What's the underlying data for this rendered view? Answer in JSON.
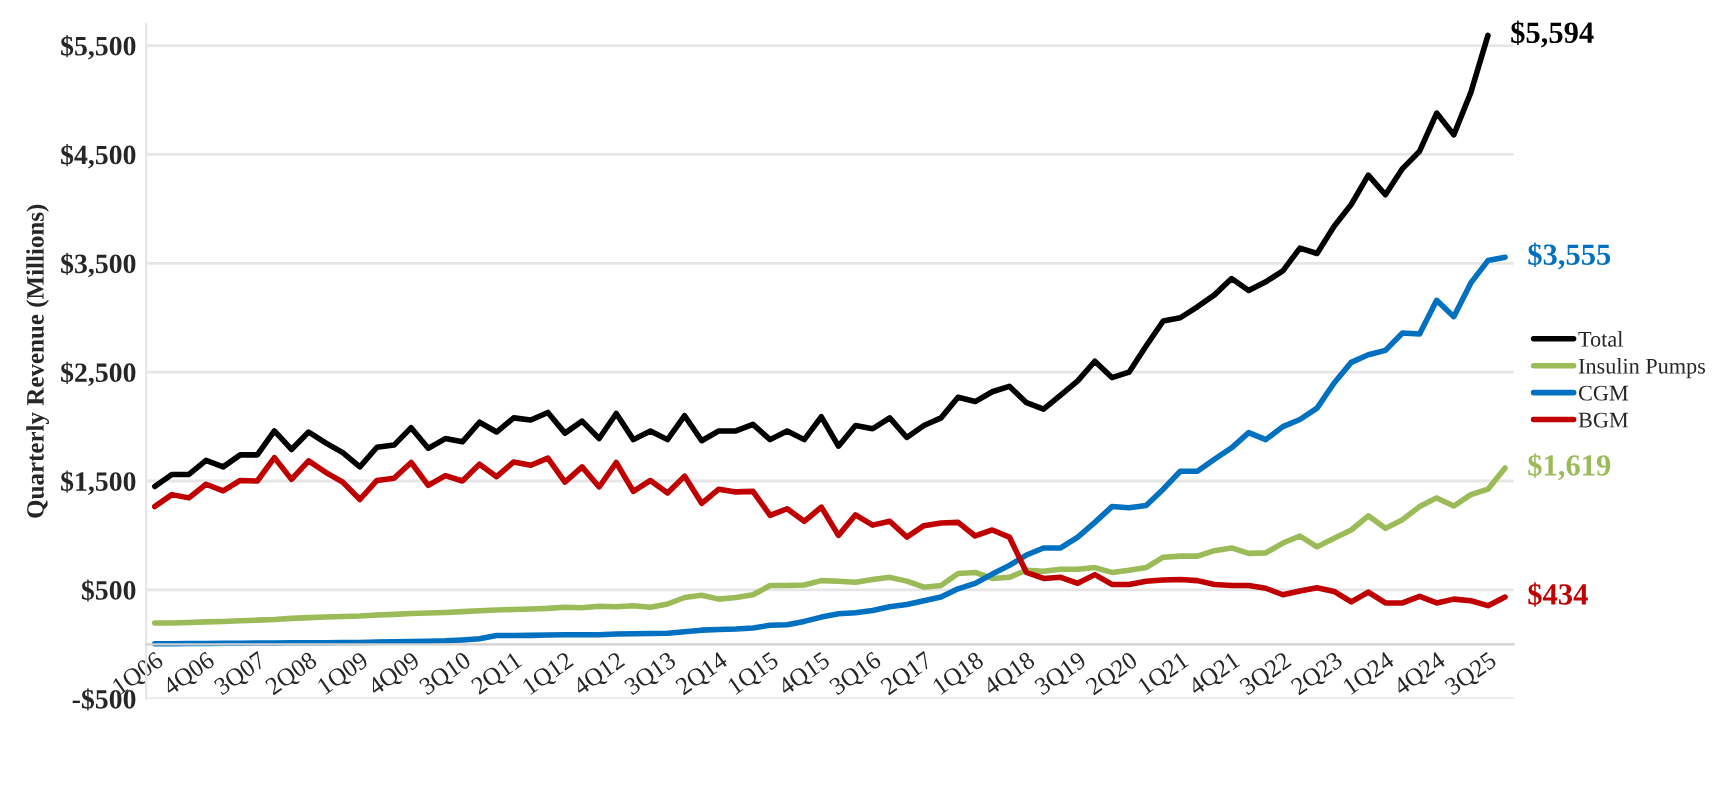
{
  "chart_data": {
    "type": "line",
    "ylabel": "Quarterly Revenue (Millions)",
    "categories": [
      "1Q06",
      null,
      null,
      "4Q06",
      null,
      null,
      "3Q07",
      null,
      null,
      "2Q08",
      null,
      null,
      "1Q09",
      null,
      null,
      "4Q09",
      null,
      null,
      "3Q10",
      null,
      null,
      "2Q11",
      null,
      null,
      "1Q12",
      null,
      null,
      "4Q12",
      null,
      null,
      "3Q13",
      null,
      null,
      "2Q14",
      null,
      null,
      "1Q15",
      null,
      null,
      "4Q15",
      null,
      null,
      "3Q16",
      null,
      null,
      "2Q17",
      null,
      null,
      "1Q18",
      null,
      null,
      "4Q18",
      null,
      null,
      "3Q19",
      null,
      null,
      "2Q20",
      null,
      null,
      "1Q21",
      null,
      null,
      "4Q21",
      null,
      null,
      "3Q22",
      null,
      null,
      "2Q23",
      null,
      null,
      "1Q24",
      null,
      null,
      "4Q24",
      null,
      null,
      "3Q25",
      null
    ],
    "series": [
      {
        "name": "Total",
        "color": "#000000",
        "values": [
          1450,
          1560,
          1560,
          1690,
          1630,
          1740,
          1740,
          1960,
          1790,
          1950,
          1850,
          1760,
          1630,
          1810,
          1830,
          1990,
          1800,
          1890,
          1860,
          2040,
          1950,
          2080,
          2060,
          2130,
          1940,
          2050,
          1890,
          2120,
          1880,
          1960,
          1880,
          2100,
          1870,
          1960,
          1960,
          2020,
          1880,
          1960,
          1880,
          2090,
          1820,
          2010,
          1980,
          2080,
          1900,
          2010,
          2080,
          2270,
          2230,
          2320,
          2370,
          2220,
          2160,
          2290,
          2420,
          2600,
          2450,
          2500,
          2740,
          2970,
          3000,
          3100,
          3210,
          3360,
          3250,
          3330,
          3430,
          3640,
          3590,
          3840,
          4040,
          4310,
          4130,
          4370,
          4530,
          4880,
          4680,
          5070,
          5594,
          null
        ],
        "value_labels": [
          null,
          null,
          null,
          null,
          null,
          null,
          null,
          null,
          null,
          null,
          null,
          null,
          null,
          null,
          null,
          null,
          null,
          null,
          null,
          null,
          null,
          null,
          null,
          null,
          null,
          null,
          null,
          null,
          null,
          null,
          null,
          null,
          null,
          null,
          null,
          null,
          null,
          null,
          null,
          null,
          null,
          null,
          null,
          null,
          null,
          null,
          null,
          null,
          null,
          null,
          null,
          null,
          null,
          null,
          null,
          null,
          null,
          null,
          null,
          null,
          null,
          null,
          null,
          null,
          null,
          null,
          null,
          null,
          null,
          null,
          null,
          null,
          null,
          null,
          null,
          null,
          null,
          null,
          "$5,594",
          null
        ]
      },
      {
        "name": "Insulin Pumps",
        "color": "#9bbb59",
        "values": [
          195,
          195,
          200,
          206,
          210,
          217,
          222,
          227,
          238,
          245,
          250,
          255,
          260,
          270,
          275,
          282,
          287,
          292,
          300,
          308,
          315,
          320,
          325,
          330,
          340,
          335,
          350,
          345,
          355,
          340,
          370,
          430,
          450,
          415,
          430,
          455,
          540,
          540,
          545,
          585,
          580,
          570,
          595,
          615,
          580,
          525,
          540,
          650,
          660,
          605,
          615,
          680,
          670,
          690,
          690,
          705,
          660,
          680,
          705,
          800,
          810,
          810,
          860,
          885,
          835,
          840,
          930,
          995,
          895,
          975,
          1050,
          1180,
          1065,
          1145,
          1265,
          1345,
          1270,
          1375,
          1425,
          1619
        ],
        "value_labels": [
          null,
          null,
          null,
          null,
          null,
          null,
          null,
          null,
          null,
          null,
          null,
          null,
          null,
          null,
          null,
          null,
          null,
          null,
          null,
          null,
          null,
          null,
          null,
          null,
          null,
          null,
          null,
          null,
          null,
          null,
          null,
          null,
          null,
          null,
          null,
          null,
          null,
          null,
          null,
          null,
          null,
          null,
          null,
          null,
          null,
          null,
          null,
          null,
          null,
          null,
          null,
          null,
          null,
          null,
          null,
          null,
          null,
          null,
          null,
          null,
          null,
          null,
          null,
          null,
          null,
          null,
          null,
          null,
          null,
          null,
          null,
          null,
          null,
          null,
          null,
          null,
          null,
          null,
          null,
          "$1,619"
        ]
      },
      {
        "name": "CGM",
        "color": "#0070c0",
        "values": [
          5,
          5,
          8,
          8,
          10,
          10,
          12,
          12,
          14,
          14,
          15,
          16,
          17,
          20,
          22,
          25,
          28,
          32,
          40,
          50,
          80,
          80,
          82,
          85,
          87,
          87,
          88,
          95,
          97,
          100,
          102,
          115,
          130,
          135,
          140,
          150,
          175,
          180,
          210,
          250,
          280,
          290,
          310,
          345,
          365,
          400,
          435,
          510,
          560,
          645,
          725,
          820,
          885,
          885,
          985,
          1120,
          1265,
          1255,
          1275,
          1425,
          1590,
          1590,
          1700,
          1805,
          1945,
          1880,
          2000,
          2065,
          2170,
          2400,
          2590,
          2660,
          2700,
          2860,
          2850,
          3160,
          3010,
          3320,
          3525,
          3555
        ],
        "value_labels": [
          null,
          null,
          null,
          null,
          null,
          null,
          null,
          null,
          null,
          null,
          null,
          null,
          null,
          null,
          null,
          null,
          null,
          null,
          null,
          null,
          null,
          null,
          null,
          null,
          null,
          null,
          null,
          null,
          null,
          null,
          null,
          null,
          null,
          null,
          null,
          null,
          null,
          null,
          null,
          null,
          null,
          null,
          null,
          null,
          null,
          null,
          null,
          null,
          null,
          null,
          null,
          null,
          null,
          null,
          null,
          null,
          null,
          null,
          null,
          null,
          null,
          null,
          null,
          null,
          null,
          null,
          null,
          null,
          null,
          null,
          null,
          null,
          null,
          null,
          null,
          null,
          null,
          null,
          null,
          "$3,555"
        ]
      },
      {
        "name": "BGM",
        "color": "#c00000",
        "values": [
          1265,
          1375,
          1345,
          1470,
          1410,
          1505,
          1500,
          1715,
          1515,
          1685,
          1580,
          1490,
          1330,
          1505,
          1525,
          1670,
          1460,
          1550,
          1500,
          1655,
          1540,
          1675,
          1645,
          1710,
          1490,
          1630,
          1445,
          1670,
          1405,
          1505,
          1390,
          1545,
          1295,
          1425,
          1400,
          1405,
          1185,
          1245,
          1130,
          1260,
          1000,
          1190,
          1095,
          1130,
          985,
          1090,
          1115,
          1120,
          995,
          1050,
          985,
          660,
          605,
          615,
          560,
          640,
          550,
          550,
          580,
          590,
          595,
          585,
          550,
          540,
          540,
          515,
          455,
          490,
          520,
          485,
          390,
          480,
          380,
          380,
          440,
          380,
          415,
          400,
          355,
          434
        ],
        "value_labels": [
          null,
          null,
          null,
          null,
          null,
          null,
          null,
          null,
          null,
          null,
          null,
          null,
          null,
          null,
          null,
          null,
          null,
          null,
          null,
          null,
          null,
          null,
          null,
          null,
          null,
          null,
          null,
          null,
          null,
          null,
          null,
          null,
          null,
          null,
          null,
          null,
          null,
          null,
          null,
          null,
          null,
          null,
          null,
          null,
          null,
          null,
          null,
          null,
          null,
          null,
          null,
          null,
          null,
          null,
          null,
          null,
          null,
          null,
          null,
          null,
          null,
          null,
          null,
          null,
          null,
          null,
          null,
          null,
          null,
          null,
          null,
          null,
          null,
          null,
          null,
          null,
          null,
          null,
          null,
          "$434"
        ]
      }
    ],
    "ylim": [
      -500,
      5700
    ],
    "yticks": [
      {
        "value": -500,
        "label": "-$500"
      },
      {
        "value": 500,
        "label": "$500"
      },
      {
        "value": 1500,
        "label": "$1,500"
      },
      {
        "value": 2500,
        "label": "$2,500"
      },
      {
        "value": 3500,
        "label": "$3,500"
      },
      {
        "value": 4500,
        "label": "$4,500"
      },
      {
        "value": 5500,
        "label": "$5,500"
      }
    ],
    "grid": "y",
    "legend": "right"
  }
}
